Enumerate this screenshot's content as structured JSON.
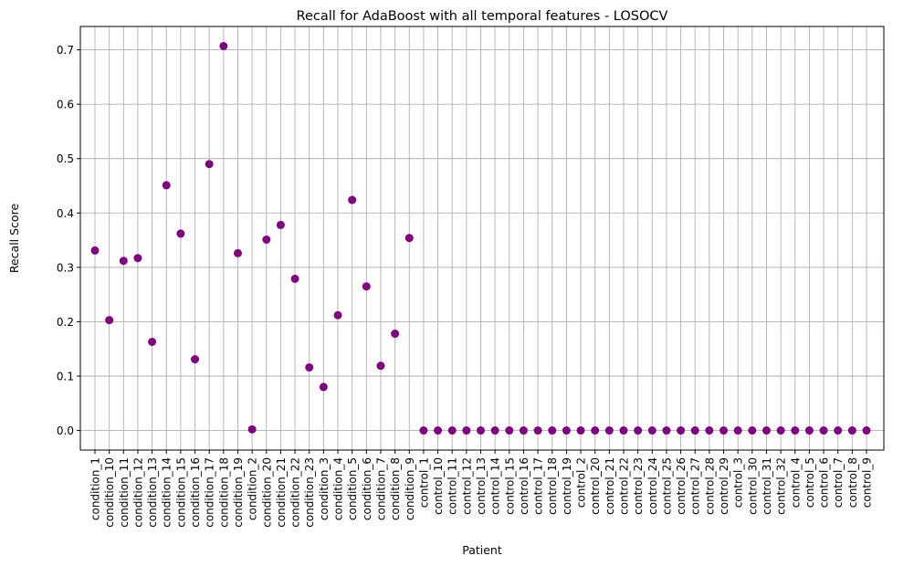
{
  "chart_data": {
    "type": "scatter",
    "title": "Recall for AdaBoost with all temporal features - LOSOCV",
    "xlabel": "Patient",
    "ylabel": "Recall Score",
    "ylim": [
      -0.036,
      0.743
    ],
    "yticks": [
      0.0,
      0.1,
      0.2,
      0.3,
      0.4,
      0.5,
      0.6,
      0.7
    ],
    "ytick_labels": [
      "0.0",
      "0.1",
      "0.2",
      "0.3",
      "0.4",
      "0.5",
      "0.6",
      "0.7"
    ],
    "grid": true,
    "marker_color": "#800080",
    "categories": [
      "condition_1",
      "condition_10",
      "condition_11",
      "condition_12",
      "condition_13",
      "condition_14",
      "condition_15",
      "condition_16",
      "condition_17",
      "condition_18",
      "condition_19",
      "condition_2",
      "condition_20",
      "condition_21",
      "condition_22",
      "condition_23",
      "condition_3",
      "condition_4",
      "condition_5",
      "condition_6",
      "condition_7",
      "condition_8",
      "condition_9",
      "control_1",
      "control_10",
      "control_11",
      "control_12",
      "control_13",
      "control_14",
      "control_15",
      "control_16",
      "control_17",
      "control_18",
      "control_19",
      "control_2",
      "control_20",
      "control_21",
      "control_22",
      "control_23",
      "control_24",
      "control_25",
      "control_26",
      "control_27",
      "control_28",
      "control_29",
      "control_3",
      "control_30",
      "control_31",
      "control_32",
      "control_4",
      "control_5",
      "control_6",
      "control_7",
      "control_8",
      "control_9"
    ],
    "values": [
      0.331,
      0.203,
      0.312,
      0.317,
      0.163,
      0.451,
      0.362,
      0.131,
      0.49,
      0.707,
      0.326,
      0.002,
      0.351,
      0.378,
      0.279,
      0.116,
      0.08,
      0.212,
      0.424,
      0.265,
      0.119,
      0.178,
      0.354,
      0,
      0,
      0,
      0,
      0,
      0,
      0,
      0,
      0,
      0,
      0,
      0,
      0,
      0,
      0,
      0,
      0,
      0,
      0,
      0,
      0,
      0,
      0,
      0,
      0,
      0,
      0,
      0,
      0,
      0,
      0,
      0
    ]
  }
}
